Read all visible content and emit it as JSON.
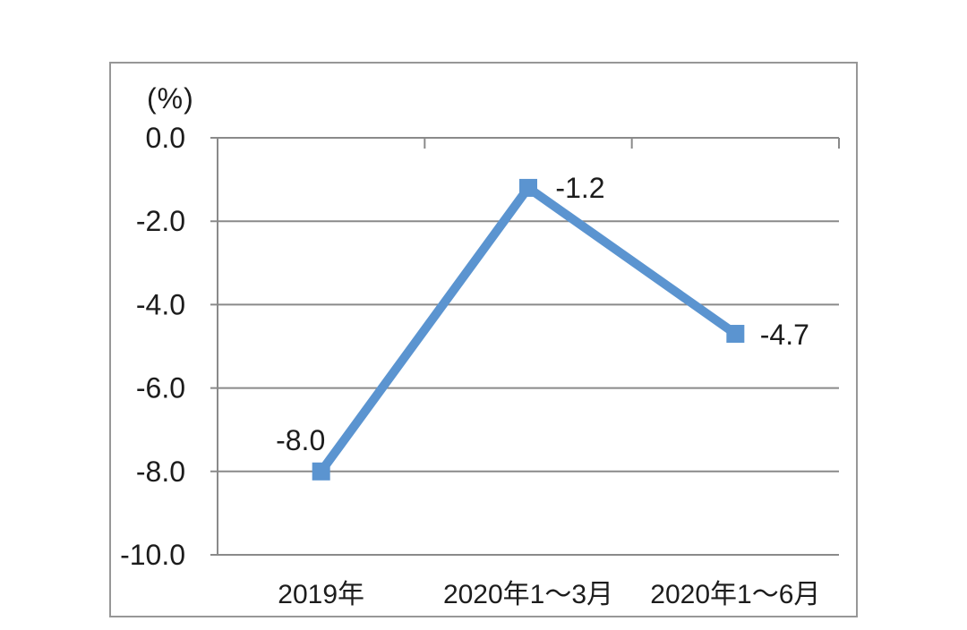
{
  "chart_data": {
    "type": "line",
    "title": "",
    "unit_label": "(%)",
    "categories": [
      "2019年",
      "2020年1～3月",
      "2020年1～6月"
    ],
    "series": [
      {
        "name": "",
        "values": [
          -8.0,
          -1.2,
          -4.7
        ]
      }
    ],
    "data_labels": [
      "-8.0",
      "-1.2",
      "-4.7"
    ],
    "y_tick_values": [
      0.0,
      -2.0,
      -4.0,
      -6.0,
      -8.0,
      -10.0
    ],
    "y_tick_labels": [
      "0.0",
      "-2.0",
      "-4.0",
      "-6.0",
      "-8.0",
      "-10.0"
    ],
    "ylim": [
      -10.0,
      0.0
    ],
    "grid": true,
    "legend_position": "none",
    "colors": {
      "line": "#5b94d0",
      "marker": "#5b94d0",
      "grid": "#8a8a8a",
      "axis": "#8a8a8a",
      "frame": "#979797",
      "text": "#1c1c1c",
      "background": "#ffffff"
    }
  }
}
